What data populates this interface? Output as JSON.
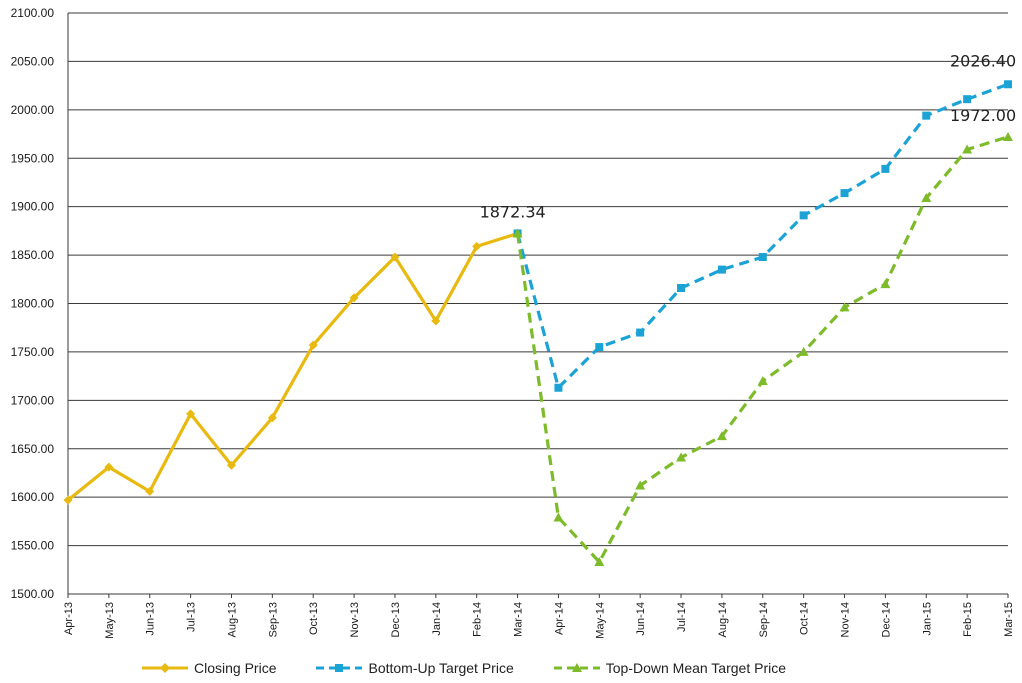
{
  "chart_data": {
    "type": "line",
    "categories": [
      "Apr-13",
      "May-13",
      "Jun-13",
      "Jul-13",
      "Aug-13",
      "Sep-13",
      "Oct-13",
      "Nov-13",
      "Dec-13",
      "Jan-14",
      "Feb-14",
      "Mar-14",
      "Apr-14",
      "May-14",
      "Jun-14",
      "Jul-14",
      "Aug-14",
      "Sep-14",
      "Oct-14",
      "Nov-14",
      "Dec-14",
      "Jan-15",
      "Feb-15",
      "Mar-15"
    ],
    "ylim": [
      1500,
      2100
    ],
    "yticks": [
      "1500.00",
      "1550.00",
      "1600.00",
      "1650.00",
      "1700.00",
      "1750.00",
      "1800.00",
      "1850.00",
      "1900.00",
      "1950.00",
      "2000.00",
      "2050.00",
      "2100.00"
    ],
    "grid": true,
    "legend_position": "bottom",
    "series": [
      {
        "name": "Closing Price",
        "color": "#E8B90E",
        "style": "solid",
        "marker": "diamond",
        "values": [
          1597,
          1631,
          1606,
          1686,
          1633,
          1682,
          1757,
          1806,
          1848,
          1782,
          1859,
          1872.34,
          null,
          null,
          null,
          null,
          null,
          null,
          null,
          null,
          null,
          null,
          null,
          null
        ]
      },
      {
        "name": "Bottom-Up Target Price",
        "color": "#1BA3D6",
        "style": "dashed",
        "marker": "square",
        "values": [
          null,
          null,
          null,
          null,
          null,
          null,
          null,
          null,
          null,
          null,
          null,
          1872.34,
          1713,
          1755,
          1770,
          1816,
          1835,
          1848,
          1891,
          1914,
          1939,
          1994,
          2011,
          2026.4
        ]
      },
      {
        "name": "Top-Down Mean Target Price",
        "color": "#7DBB2A",
        "style": "dashed",
        "marker": "triangle",
        "values": [
          null,
          null,
          null,
          null,
          null,
          null,
          null,
          null,
          null,
          null,
          null,
          1872.34,
          1579,
          1533,
          1612,
          1641,
          1663,
          1720,
          1750,
          1796,
          1820,
          1909,
          1959,
          1972.0
        ]
      }
    ],
    "annotations": [
      {
        "text": "1872.34",
        "category": "Mar-14",
        "value": 1872.34
      },
      {
        "text": "2026.40",
        "category": "Mar-15",
        "value": 2026.4
      },
      {
        "text": "1972.00",
        "category": "Mar-15",
        "value": 1972.0
      }
    ]
  }
}
